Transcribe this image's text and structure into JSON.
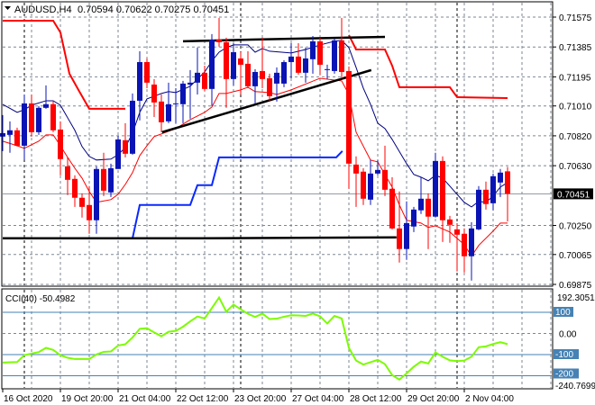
{
  "header": {
    "symbol": "AUDUSD,H4",
    "ohlc": "0.70594 0.70622 0.70275 0.70451"
  },
  "colors": {
    "bull": "#0a14b4",
    "bear": "#ff0000",
    "ma": "#000080",
    "lower_band": "#ff0000",
    "upper_step": "#ff0000",
    "blue_step": "#0a28ff",
    "trend": "#000000",
    "cci": "#7cfc00",
    "cci_levels": "#4682b4",
    "grid": "#7d8792"
  },
  "chart_data": [
    {
      "type": "candlestick",
      "title": "AUDUSD,H4",
      "ylim": [
        0.69875,
        0.71575
      ],
      "price_ticks": [
        "0.71575",
        "0.71385",
        "0.71195",
        "0.71010",
        "0.70820",
        "0.70630",
        "0.70250",
        "0.70065",
        "0.69875"
      ],
      "current_price": "0.70451",
      "x_labels": [
        {
          "bar": 0,
          "text": "16 Oct 2020"
        },
        {
          "bar": 8,
          "text": "19 Oct 20:00"
        },
        {
          "bar": 16,
          "text": "21 Oct 04:00"
        },
        {
          "bar": 24,
          "text": "22 Oct 12:00"
        },
        {
          "bar": 32,
          "text": "23 Oct 20:00"
        },
        {
          "bar": 40,
          "text": "27 Oct 04:00"
        },
        {
          "bar": 48,
          "text": "28 Oct 12:00"
        },
        {
          "bar": 56,
          "text": "29 Oct 20:00"
        },
        {
          "bar": 64,
          "text": "2 Nov 04:00"
        }
      ],
      "day_separators": [
        3,
        33,
        63
      ],
      "candles": [
        [
          0.70815,
          0.70952,
          0.70723,
          0.70837
        ],
        [
          0.70826,
          0.70912,
          0.70712,
          0.70855
        ],
        [
          0.70855,
          0.70872,
          0.70752,
          0.70757
        ],
        [
          0.70757,
          0.71083,
          0.70666,
          0.71026
        ],
        [
          0.71026,
          0.71083,
          0.70815,
          0.70843
        ],
        [
          0.70843,
          0.71009,
          0.70826,
          0.70998
        ],
        [
          0.70998,
          0.71141,
          0.70992,
          0.71021
        ],
        [
          0.71021,
          0.71043,
          0.70843,
          0.70855
        ],
        [
          0.7086,
          0.70912,
          0.70569,
          0.70672
        ],
        [
          0.70626,
          0.70683,
          0.70443,
          0.7054
        ],
        [
          0.70546,
          0.70569,
          0.70368,
          0.70426
        ],
        [
          0.70426,
          0.70454,
          0.703,
          0.70368
        ],
        [
          0.7038,
          0.705,
          0.70197,
          0.70283
        ],
        [
          0.70283,
          0.70626,
          0.70197,
          0.70609
        ],
        [
          0.70609,
          0.70712,
          0.70437,
          0.70471
        ],
        [
          0.7046,
          0.70643,
          0.70431,
          0.70614
        ],
        [
          0.70609,
          0.7082,
          0.70609,
          0.70797
        ],
        [
          0.70792,
          0.709,
          0.70683,
          0.70706
        ],
        [
          0.70706,
          0.71089,
          0.707,
          0.71043
        ],
        [
          0.71043,
          0.71358,
          0.70918,
          0.71289
        ],
        [
          0.71289,
          0.71312,
          0.71123,
          0.71158
        ],
        [
          0.71146,
          0.71181,
          0.7094,
          0.71032
        ],
        [
          0.71038,
          0.71083,
          0.70843,
          0.70906
        ],
        [
          0.70912,
          0.71158,
          0.709,
          0.71021
        ],
        [
          0.71021,
          0.71123,
          0.709,
          0.71026
        ],
        [
          0.71021,
          0.71169,
          0.709,
          0.71152
        ],
        [
          0.71146,
          0.71238,
          0.70929,
          0.71158
        ],
        [
          0.71158,
          0.71381,
          0.71083,
          0.71221
        ],
        [
          0.71221,
          0.71266,
          0.71106,
          0.71118
        ],
        [
          0.71118,
          0.71467,
          0.71009,
          0.71432
        ],
        [
          0.71432,
          0.7157,
          0.71387,
          0.71415
        ],
        [
          0.71415,
          0.71444,
          0.70998,
          0.71181
        ],
        [
          0.71181,
          0.71409,
          0.71141,
          0.71352
        ],
        [
          0.71312,
          0.71352,
          0.71083,
          0.71272
        ],
        [
          0.71278,
          0.71358,
          0.71123,
          0.71135
        ],
        [
          0.71135,
          0.71244,
          0.71026,
          0.71226
        ],
        [
          0.71232,
          0.71444,
          0.71123,
          0.71181
        ],
        [
          0.71186,
          0.71215,
          0.71043,
          0.71072
        ],
        [
          0.71152,
          0.71255,
          0.71038,
          0.71221
        ],
        [
          0.71152,
          0.71301,
          0.71129,
          0.71289
        ],
        [
          0.71289,
          0.71409,
          0.71186,
          0.71324
        ],
        [
          0.71324,
          0.71409,
          0.71209,
          0.71221
        ],
        [
          0.71221,
          0.71381,
          0.71158,
          0.71312
        ],
        [
          0.71307,
          0.71455,
          0.71215,
          0.71421
        ],
        [
          0.71421,
          0.71444,
          0.71209,
          0.71272
        ],
        [
          0.71238,
          0.71272,
          0.71181,
          0.71244
        ],
        [
          0.71232,
          0.71438,
          0.71215,
          0.71427
        ],
        [
          0.71427,
          0.7157,
          0.71186,
          0.71226
        ],
        [
          0.71232,
          0.71261,
          0.70483,
          0.70643
        ],
        [
          0.70637,
          0.70689,
          0.70368,
          0.7058
        ],
        [
          0.70592,
          0.70614,
          0.7038,
          0.7042
        ],
        [
          0.70414,
          0.70666,
          0.7038,
          0.7058
        ],
        [
          0.7058,
          0.70666,
          0.70569,
          0.70603
        ],
        [
          0.70603,
          0.70757,
          0.70437,
          0.70477
        ],
        [
          0.70483,
          0.70557,
          0.70225,
          0.70231
        ],
        [
          0.70231,
          0.70466,
          0.70014,
          0.701
        ],
        [
          0.701,
          0.70403,
          0.70031,
          0.70265
        ],
        [
          0.70243,
          0.70368,
          0.70208,
          0.70351
        ],
        [
          0.70346,
          0.70557,
          0.70323,
          0.7042
        ],
        [
          0.7042,
          0.70454,
          0.701,
          0.70306
        ],
        [
          0.70306,
          0.70712,
          0.703,
          0.7066
        ],
        [
          0.7066,
          0.70689,
          0.70145,
          0.70283
        ],
        [
          0.70288,
          0.70311,
          0.7014,
          0.70254
        ],
        [
          0.70225,
          0.70265,
          0.69957,
          0.70191
        ],
        [
          0.70197,
          0.70231,
          0.69951,
          0.70054
        ],
        [
          0.70054,
          0.70271,
          0.69899,
          0.70231
        ],
        [
          0.70225,
          0.705,
          0.7022,
          0.70477
        ],
        [
          0.70477,
          0.70529,
          0.70351,
          0.70386
        ],
        [
          0.70391,
          0.7058,
          0.70346,
          0.70563
        ],
        [
          0.70523,
          0.70609,
          0.70431,
          0.70586
        ],
        [
          0.70594,
          0.70622,
          0.70275,
          0.70451
        ]
      ],
      "overlays": {
        "ma": [
          [
            0,
            0.7102
          ],
          [
            2,
            0.70969
          ],
          [
            3,
            0.70986
          ],
          [
            4,
            0.71015
          ],
          [
            6,
            0.71043
          ],
          [
            7,
            0.71043
          ],
          [
            8,
            0.71015
          ],
          [
            9,
            0.70935
          ],
          [
            10,
            0.70855
          ],
          [
            11,
            0.70752
          ],
          [
            12,
            0.70689
          ],
          [
            13,
            0.70666
          ],
          [
            15,
            0.70672
          ],
          [
            16,
            0.707
          ],
          [
            17,
            0.70746
          ],
          [
            18,
            0.70837
          ],
          [
            19,
            0.70969
          ],
          [
            20,
            0.71055
          ],
          [
            22,
            0.71089
          ],
          [
            23,
            0.71101
          ],
          [
            24,
            0.71095
          ],
          [
            26,
            0.71135
          ],
          [
            28,
            0.71226
          ],
          [
            29,
            0.71295
          ],
          [
            30,
            0.71352
          ],
          [
            31,
            0.71381
          ],
          [
            32,
            0.71398
          ],
          [
            34,
            0.71398
          ],
          [
            35,
            0.71352
          ],
          [
            36,
            0.71375
          ],
          [
            37,
            0.71358
          ],
          [
            40,
            0.71347
          ],
          [
            42,
            0.71369
          ],
          [
            44,
            0.71398
          ],
          [
            46,
            0.71421
          ],
          [
            47,
            0.71427
          ],
          [
            48,
            0.71381
          ],
          [
            49,
            0.71255
          ],
          [
            50,
            0.71123
          ],
          [
            51,
            0.7102
          ],
          [
            52,
            0.709
          ],
          [
            53,
            0.70866
          ],
          [
            54,
            0.70797
          ],
          [
            56,
            0.70643
          ],
          [
            57,
            0.70574
          ],
          [
            58,
            0.70557
          ],
          [
            59,
            0.70534
          ],
          [
            60,
            0.70569
          ],
          [
            61,
            0.70551
          ],
          [
            62,
            0.705
          ],
          [
            63,
            0.70448
          ],
          [
            64,
            0.70397
          ],
          [
            65,
            0.70368
          ],
          [
            66,
            0.70403
          ],
          [
            67,
            0.70397
          ],
          [
            68,
            0.70437
          ],
          [
            69,
            0.70494
          ],
          [
            70,
            0.70523
          ]
        ],
        "lower_band": [
          [
            0,
            0.70786
          ],
          [
            2,
            0.70757
          ],
          [
            3,
            0.7074
          ],
          [
            5,
            0.70786
          ],
          [
            6,
            0.70826
          ],
          [
            7,
            0.70826
          ],
          [
            8,
            0.70757
          ],
          [
            9,
            0.70683
          ],
          [
            10,
            0.70614
          ],
          [
            11,
            0.70551
          ],
          [
            12,
            0.70466
          ],
          [
            13,
            0.70397
          ],
          [
            15,
            0.70414
          ],
          [
            16,
            0.70448
          ],
          [
            17,
            0.70511
          ],
          [
            18,
            0.70586
          ],
          [
            19,
            0.70694
          ],
          [
            20,
            0.70757
          ],
          [
            21,
            0.70815
          ],
          [
            24,
            0.70866
          ],
          [
            26,
            0.70923
          ],
          [
            28,
            0.70969
          ],
          [
            29,
            0.71003
          ],
          [
            30,
            0.71089
          ],
          [
            31,
            0.71089
          ],
          [
            33,
            0.71112
          ],
          [
            34,
            0.71129
          ],
          [
            35,
            0.71101
          ],
          [
            37,
            0.71095
          ],
          [
            38,
            0.71083
          ],
          [
            40,
            0.71112
          ],
          [
            44,
            0.71186
          ],
          [
            47,
            0.71169
          ],
          [
            48,
            0.71083
          ],
          [
            49,
            0.70843
          ],
          [
            51,
            0.70666
          ],
          [
            52,
            0.70654
          ],
          [
            54,
            0.70494
          ],
          [
            55,
            0.7038
          ],
          [
            56,
            0.70283
          ],
          [
            58,
            0.70265
          ],
          [
            59,
            0.70237
          ],
          [
            60,
            0.70248
          ],
          [
            62,
            0.70208
          ],
          [
            64,
            0.70128
          ],
          [
            65,
            0.70054
          ],
          [
            66,
            0.70123
          ],
          [
            68,
            0.70214
          ],
          [
            69,
            0.70265
          ],
          [
            70,
            0.70265
          ]
        ],
        "upper_step": [
          [
            [
              0,
              0.71552
            ],
            [
              7,
              0.71552
            ],
            [
              8,
              0.71478
            ],
            [
              9.25,
              0.71215
            ],
            [
              10.5,
              0.71112
            ],
            [
              12,
              0.70992
            ],
            [
              17,
              0.70992
            ]
          ],
          [
            [
              48,
              0.71461
            ],
            [
              49,
              0.71369
            ],
            [
              53,
              0.71369
            ],
            [
              54,
              0.71266
            ],
            [
              55,
              0.71129
            ],
            [
              62,
              0.71129
            ],
            [
              63,
              0.71066
            ],
            [
              70,
              0.7106
            ]
          ]
        ],
        "blue_step": [
          [
            18,
            0.70168
          ],
          [
            19,
            0.7038
          ],
          [
            26,
            0.7038
          ],
          [
            27,
            0.70506
          ],
          [
            29,
            0.70506
          ],
          [
            30,
            0.70683
          ],
          [
            46.25,
            0.70683
          ],
          [
            47.1,
            0.70723
          ]
        ],
        "trendlines": [
          [
            [
              25,
              0.71421
            ],
            [
              34.4,
              0.71432
            ],
            [
              53,
              0.71449
            ]
          ],
          [
            [
              22.1,
              0.70843
            ],
            [
              51.1,
              0.71238
            ]
          ],
          [
            [
              0,
              0.70168
            ],
            [
              27.5,
              0.70168
            ],
            [
              54.6,
              0.70174
            ]
          ]
        ]
      }
    },
    {
      "type": "line",
      "title": "CCI(40) -50.4982",
      "ylim": [
        -240.7699,
        192.3051
      ],
      "top_label": "192.3051",
      "bottom_label": "-240.7699",
      "levels": [
        {
          "value": 100,
          "label": "100"
        },
        {
          "value": -100,
          "label": "-100"
        },
        {
          "value": -200,
          "label": "-200"
        }
      ],
      "zero_label": "0.00",
      "values": [
        -138,
        -136,
        -135,
        -103,
        -95,
        -88,
        -68,
        -78,
        -103,
        -115,
        -121,
        -121,
        -121,
        -99,
        -87,
        -85,
        -57,
        -51,
        -19,
        22,
        25,
        5,
        -13,
        8,
        12,
        32,
        57,
        80,
        71,
        120,
        170,
        103,
        136,
        114,
        93,
        78,
        94,
        68,
        70,
        79,
        86,
        85,
        83,
        94,
        81,
        47,
        83,
        71,
        -68,
        -128,
        -147,
        -136,
        -125,
        -145,
        -197,
        -218,
        -189,
        -157,
        -133,
        -142,
        -90,
        -110,
        -127,
        -131,
        -128,
        -110,
        -65,
        -61,
        -50,
        -41,
        -50.4982
      ]
    }
  ]
}
